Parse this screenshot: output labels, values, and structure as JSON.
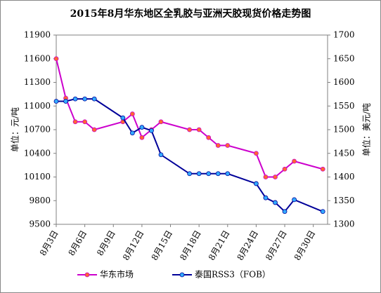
{
  "chart_data": {
    "type": "line",
    "title": "2015年8月华东地区全乳胶与亚洲天胶现货价格走势图",
    "ylabel": "单位：元/吨",
    "y2label": "单位：美元/吨",
    "x": [
      3,
      4,
      5,
      6,
      7,
      10,
      11,
      12,
      13,
      14,
      17,
      18,
      19,
      20,
      21,
      24,
      25,
      26,
      27,
      28,
      31
    ],
    "xlim": [
      3,
      31.5
    ],
    "xticks": [
      {
        "value": 3,
        "label": "8月3日"
      },
      {
        "value": 6,
        "label": "8月6日"
      },
      {
        "value": 9,
        "label": "8月9日"
      },
      {
        "value": 12,
        "label": "8月12日"
      },
      {
        "value": 15,
        "label": "8月15日"
      },
      {
        "value": 18,
        "label": "8月18日"
      },
      {
        "value": 21,
        "label": "8月21日"
      },
      {
        "value": 24,
        "label": "8月24日"
      },
      {
        "value": 27,
        "label": "8月27日"
      },
      {
        "value": 30,
        "label": "8月30日"
      }
    ],
    "ylim": [
      9500,
      11900
    ],
    "yticks": [
      9500,
      9800,
      10100,
      10400,
      10700,
      11000,
      11300,
      11600,
      11900
    ],
    "y2lim": [
      1300,
      1700
    ],
    "y2ticks": [
      1300,
      1350,
      1400,
      1450,
      1500,
      1550,
      1600,
      1650,
      1700
    ],
    "legend": "bottom",
    "series": [
      {
        "name": "华东市场",
        "color": "#cc00cc",
        "marker_color": "#ff6633",
        "values": [
          11600,
          11100,
          10800,
          10800,
          10700,
          10800,
          10900,
          10600,
          10700,
          10800,
          10700,
          10700,
          10600,
          10500,
          10500,
          10400,
          10100,
          10100,
          10200,
          10300,
          10200
        ]
      },
      {
        "name": "泰国RSS3（FOB）",
        "color": "#000099",
        "marker_color": "#33aaff",
        "axis": "y2",
        "values": [
          1560,
          1560,
          1565,
          1565,
          1565,
          1525,
          1493,
          1505,
          1498,
          1447,
          1407,
          1407,
          1407,
          1407,
          1407,
          1386,
          1356,
          1346,
          1327,
          1352,
          1327
        ]
      }
    ]
  }
}
